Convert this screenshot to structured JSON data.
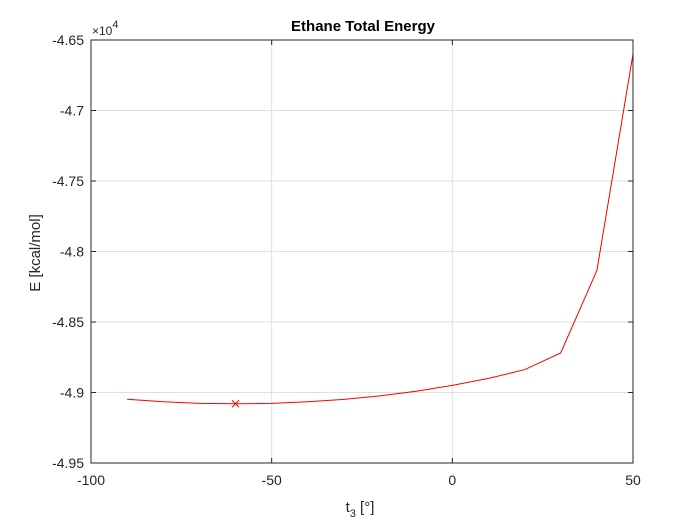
{
  "chart_data": {
    "type": "line",
    "title": "Ethane Total Energy",
    "xlabel_main": "t",
    "xlabel_sub": "3",
    "xlabel_units": " [°]",
    "ylabel": "E [kcal/mol]",
    "y_exponent_label": "×10",
    "y_exponent_power": "4",
    "xlim": [
      -100,
      50
    ],
    "ylim": [
      -4.95,
      -4.65
    ],
    "y_scale_factor": 10000,
    "xticks": [
      -100,
      -50,
      0,
      50
    ],
    "xtick_labels": [
      "-100",
      "-50",
      "0",
      "50"
    ],
    "yticks": [
      -4.95,
      -4.9,
      -4.85,
      -4.8,
      -4.75,
      -4.7,
      -4.65
    ],
    "ytick_labels": [
      "-4.95",
      "-4.9",
      "-4.85",
      "-4.8",
      "-4.75",
      "-4.7",
      "-4.65"
    ],
    "grid": true,
    "series": [
      {
        "color": "#ff0000",
        "x": [
          -90,
          -80,
          -70,
          -60,
          -50,
          -40,
          -30,
          -20,
          -10,
          0,
          10,
          20,
          30,
          40,
          50
        ],
        "y": [
          -4.9048,
          -4.9066,
          -4.9077,
          -4.908,
          -4.9077,
          -4.9066,
          -4.9049,
          -4.9024,
          -4.8991,
          -4.895,
          -4.89,
          -4.8838,
          -4.872,
          -4.8135,
          -4.66
        ]
      }
    ],
    "markers": [
      {
        "x": -60,
        "y": -4.908,
        "symbol": "x",
        "color": "#ff0000"
      }
    ]
  }
}
